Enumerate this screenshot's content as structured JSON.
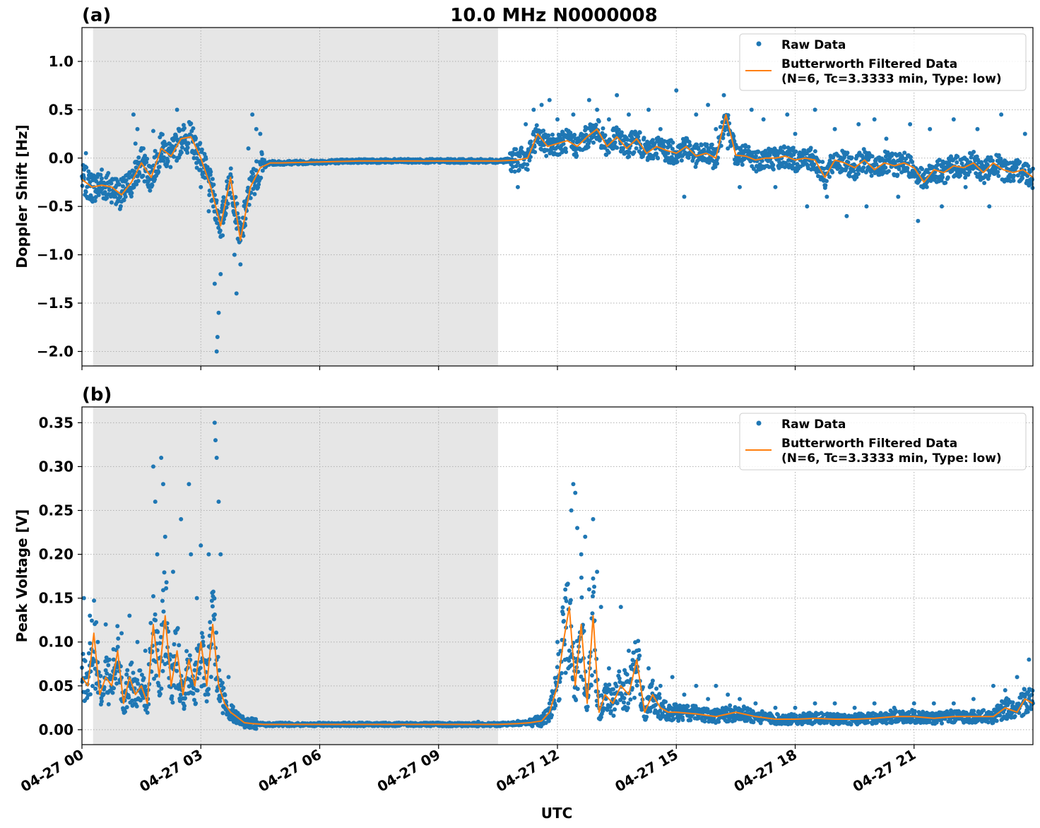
{
  "figure_title": "10.0 MHz N0000008",
  "xlabel": "UTC",
  "x_tick_labels": [
    "04-27 00",
    "04-27 03",
    "04-27 06",
    "04-27 09",
    "04-27 12",
    "04-27 15",
    "04-27 18",
    "04-27 21"
  ],
  "colors": {
    "raw": "#1f77b4",
    "filtered": "#ff7f0e",
    "shade": "#e6e6e6"
  },
  "chart_data": [
    {
      "type": "scatter",
      "panel_label": "(a)",
      "ylabel": "Doppler Shift [Hz]",
      "ylim": [
        -2.15,
        1.35
      ],
      "xlim_hours": [
        0,
        24
      ],
      "x_ticks_hours": [
        0,
        3,
        6,
        9,
        12,
        15,
        18,
        21
      ],
      "y_ticks": [
        1.0,
        0.5,
        0.0,
        -0.5,
        -1.0,
        -1.5,
        -2.0
      ],
      "y_tick_labels": [
        "1.0",
        "0.5",
        "0.0",
        "−0.5",
        "−1.0",
        "−1.5",
        "−2.0"
      ],
      "shaded_interval_hours": [
        0.28,
        10.5
      ],
      "grid": true,
      "legend_position": "top-right",
      "legend": {
        "raw": "Raw Data",
        "filtered_line1": "Butterworth Filtered Data",
        "filtered_line2": "(N=6, Tc=3.3333 min, Type: low)"
      },
      "series": [
        {
          "name": "Butterworth Filtered Data",
          "style": "line",
          "x_hours": [
            0,
            0.25,
            0.5,
            0.75,
            1.0,
            1.25,
            1.5,
            1.75,
            2.0,
            2.25,
            2.5,
            2.75,
            3.0,
            3.25,
            3.5,
            3.75,
            4.0,
            4.25,
            4.5,
            4.75,
            5,
            6,
            7,
            8,
            9,
            10,
            10.5,
            11,
            11.25,
            11.5,
            11.75,
            12,
            12.25,
            12.5,
            12.75,
            13,
            13.25,
            13.5,
            13.75,
            14,
            14.25,
            14.5,
            14.75,
            15,
            15.25,
            15.5,
            15.75,
            16,
            16.25,
            16.5,
            16.75,
            17,
            17.25,
            17.5,
            17.75,
            18,
            18.25,
            18.5,
            18.75,
            19,
            19.25,
            19.5,
            19.75,
            20,
            20.25,
            20.5,
            20.75,
            21,
            21.25,
            21.5,
            21.75,
            22,
            22.25,
            22.5,
            22.75,
            23,
            23.25,
            23.5,
            23.75,
            24
          ],
          "y": [
            -0.22,
            -0.3,
            -0.28,
            -0.3,
            -0.38,
            -0.25,
            -0.05,
            -0.2,
            0.1,
            0.02,
            0.2,
            0.22,
            0.0,
            -0.3,
            -0.7,
            -0.2,
            -0.85,
            -0.3,
            -0.1,
            -0.05,
            -0.05,
            -0.04,
            -0.03,
            -0.03,
            -0.03,
            -0.03,
            -0.03,
            -0.02,
            0.0,
            0.25,
            0.12,
            0.15,
            0.18,
            0.12,
            0.22,
            0.3,
            0.12,
            0.22,
            0.1,
            0.2,
            0.05,
            0.12,
            0.08,
            0.05,
            0.12,
            0.02,
            0.05,
            0.0,
            0.45,
            0.03,
            0.02,
            -0.02,
            0.0,
            0.0,
            0.02,
            -0.02,
            0.0,
            -0.02,
            -0.2,
            -0.02,
            -0.05,
            -0.1,
            -0.02,
            -0.12,
            -0.05,
            -0.08,
            -0.05,
            -0.1,
            -0.25,
            -0.12,
            -0.15,
            -0.08,
            -0.1,
            -0.05,
            -0.15,
            -0.05,
            -0.12,
            -0.15,
            -0.12,
            -0.2
          ]
        },
        {
          "name": "Raw Data",
          "style": "points",
          "x_hours": [
            0.05,
            0.1,
            0.3,
            0.5,
            0.8,
            1.1,
            1.3,
            1.35,
            1.4,
            1.55,
            1.8,
            2.0,
            2.2,
            2.4,
            2.45,
            2.6,
            2.9,
            3.0,
            3.2,
            3.35,
            3.4,
            3.42,
            3.45,
            3.5,
            3.55,
            3.6,
            3.7,
            3.85,
            3.9,
            4.0,
            4.05,
            4.1,
            4.2,
            4.3,
            4.4,
            4.5,
            11.0,
            11.2,
            11.4,
            11.6,
            11.8,
            12.0,
            12.2,
            12.4,
            12.6,
            12.8,
            13.0,
            13.3,
            13.5,
            13.8,
            14.0,
            14.3,
            14.6,
            14.8,
            15.0,
            15.2,
            15.5,
            15.8,
            16.0,
            16.2,
            16.3,
            16.6,
            16.9,
            17.2,
            17.5,
            17.8,
            18.0,
            18.3,
            18.5,
            18.8,
            19.0,
            19.3,
            19.6,
            19.8,
            20.0,
            20.3,
            20.6,
            20.9,
            21.1,
            21.4,
            21.7,
            22.0,
            22.3,
            22.6,
            22.9,
            23.2,
            23.5,
            23.8
          ],
          "y": [
            -0.2,
            0.05,
            -0.3,
            -0.12,
            -0.35,
            -0.4,
            0.45,
            0.15,
            0.3,
            0.1,
            0.28,
            0.25,
            0.1,
            0.5,
            0.3,
            0.18,
            -0.1,
            -0.3,
            -0.55,
            -1.3,
            -2.0,
            -1.85,
            -1.6,
            -1.2,
            -0.8,
            -0.6,
            -0.2,
            -1.0,
            -1.4,
            -1.1,
            -0.7,
            -0.45,
            0.1,
            0.45,
            0.3,
            0.25,
            -0.3,
            0.35,
            0.5,
            0.55,
            0.6,
            0.4,
            0.1,
            0.45,
            0.25,
            0.6,
            0.5,
            0.4,
            0.65,
            0.45,
            0.2,
            0.5,
            0.3,
            0.0,
            0.7,
            -0.4,
            0.45,
            0.55,
            0.3,
            0.65,
            0.1,
            -0.3,
            0.5,
            0.4,
            -0.3,
            0.45,
            0.25,
            -0.5,
            0.5,
            -0.4,
            0.3,
            -0.6,
            0.35,
            -0.5,
            0.4,
            0.2,
            -0.4,
            0.35,
            -0.65,
            0.3,
            -0.5,
            0.4,
            -0.3,
            0.3,
            -0.5,
            0.45,
            -0.2,
            0.25
          ]
        }
      ]
    },
    {
      "type": "scatter",
      "panel_label": "(b)",
      "ylabel": "Peak Voltage [V]",
      "ylim": [
        -0.017,
        0.368
      ],
      "xlim_hours": [
        0,
        24
      ],
      "x_ticks_hours": [
        0,
        3,
        6,
        9,
        12,
        15,
        18,
        21
      ],
      "y_ticks": [
        0.0,
        0.05,
        0.1,
        0.15,
        0.2,
        0.25,
        0.3,
        0.35
      ],
      "y_tick_labels": [
        "0.00",
        "0.05",
        "0.10",
        "0.15",
        "0.20",
        "0.25",
        "0.30",
        "0.35"
      ],
      "shaded_interval_hours": [
        0.28,
        10.5
      ],
      "grid": true,
      "legend_position": "top-right",
      "legend": {
        "raw": "Raw Data",
        "filtered_line1": "Butterworth Filtered Data",
        "filtered_line2": "(N=6, Tc=3.3333 min, Type: low)"
      },
      "series": [
        {
          "name": "Butterworth Filtered Data",
          "style": "line",
          "x_hours": [
            0,
            0.15,
            0.3,
            0.45,
            0.6,
            0.75,
            0.9,
            1.05,
            1.2,
            1.35,
            1.5,
            1.65,
            1.8,
            1.95,
            2.1,
            2.25,
            2.4,
            2.55,
            2.7,
            2.85,
            3.0,
            3.15,
            3.3,
            3.45,
            3.6,
            3.75,
            3.9,
            4.1,
            4.3,
            4.6,
            5,
            6,
            7,
            8,
            9,
            10,
            10.5,
            11,
            11.3,
            11.6,
            11.8,
            12.0,
            12.15,
            12.3,
            12.45,
            12.6,
            12.75,
            12.9,
            13.05,
            13.2,
            13.4,
            13.6,
            13.8,
            14.0,
            14.2,
            14.4,
            14.6,
            14.8,
            15,
            15.5,
            16,
            16.5,
            17,
            17.5,
            18,
            18.5,
            19,
            19.5,
            20,
            20.5,
            21,
            21.5,
            22,
            22.5,
            23,
            23.3,
            23.6,
            23.8,
            24
          ],
          "y": [
            0.06,
            0.05,
            0.11,
            0.04,
            0.06,
            0.05,
            0.09,
            0.03,
            0.06,
            0.04,
            0.05,
            0.03,
            0.12,
            0.06,
            0.13,
            0.05,
            0.09,
            0.04,
            0.08,
            0.05,
            0.1,
            0.05,
            0.12,
            0.05,
            0.03,
            0.02,
            0.015,
            0.008,
            0.007,
            0.006,
            0.006,
            0.006,
            0.006,
            0.006,
            0.006,
            0.006,
            0.006,
            0.007,
            0.008,
            0.01,
            0.02,
            0.05,
            0.1,
            0.14,
            0.05,
            0.12,
            0.03,
            0.13,
            0.02,
            0.04,
            0.03,
            0.05,
            0.04,
            0.08,
            0.02,
            0.04,
            0.025,
            0.02,
            0.02,
            0.018,
            0.015,
            0.02,
            0.015,
            0.012,
            0.012,
            0.013,
            0.012,
            0.012,
            0.013,
            0.015,
            0.015,
            0.013,
            0.015,
            0.015,
            0.015,
            0.025,
            0.02,
            0.035,
            0.03
          ]
        },
        {
          "name": "Raw Data",
          "style": "points",
          "x_hours": [
            0.05,
            0.2,
            0.4,
            0.6,
            0.8,
            1.0,
            1.2,
            1.4,
            1.6,
            1.8,
            1.85,
            1.9,
            2.0,
            2.05,
            2.1,
            2.3,
            2.5,
            2.7,
            2.75,
            2.9,
            3.0,
            3.2,
            3.35,
            3.37,
            3.4,
            3.45,
            3.5,
            3.7,
            3.9,
            4.2,
            5,
            6,
            7,
            8,
            9,
            10,
            11,
            11.5,
            11.8,
            12.0,
            12.2,
            12.35,
            12.4,
            12.45,
            12.5,
            12.6,
            12.7,
            12.8,
            12.9,
            13.0,
            13.1,
            13.3,
            13.6,
            13.8,
            14.0,
            14.3,
            14.6,
            14.9,
            15.2,
            15.5,
            15.8,
            16.0,
            16.3,
            16.6,
            17.0,
            17.5,
            18.0,
            18.5,
            19.0,
            19.5,
            20.0,
            20.5,
            21.0,
            21.5,
            22.0,
            22.5,
            23.0,
            23.3,
            23.6,
            23.9
          ],
          "y": [
            0.15,
            0.13,
            0.1,
            0.12,
            0.08,
            0.11,
            0.13,
            0.1,
            0.09,
            0.3,
            0.26,
            0.2,
            0.31,
            0.28,
            0.22,
            0.18,
            0.24,
            0.28,
            0.2,
            0.15,
            0.21,
            0.2,
            0.35,
            0.33,
            0.31,
            0.26,
            0.2,
            0.06,
            0.02,
            0.008,
            0.008,
            0.008,
            0.008,
            0.008,
            0.008,
            0.009,
            0.01,
            0.015,
            0.03,
            0.1,
            0.15,
            0.25,
            0.28,
            0.27,
            0.23,
            0.2,
            0.22,
            0.16,
            0.24,
            0.18,
            0.14,
            0.07,
            0.14,
            0.09,
            0.09,
            0.07,
            0.05,
            0.06,
            0.04,
            0.05,
            0.035,
            0.05,
            0.04,
            0.035,
            0.03,
            0.025,
            0.025,
            0.03,
            0.03,
            0.025,
            0.03,
            0.025,
            0.03,
            0.03,
            0.03,
            0.035,
            0.05,
            0.045,
            0.06,
            0.08
          ]
        }
      ]
    }
  ]
}
